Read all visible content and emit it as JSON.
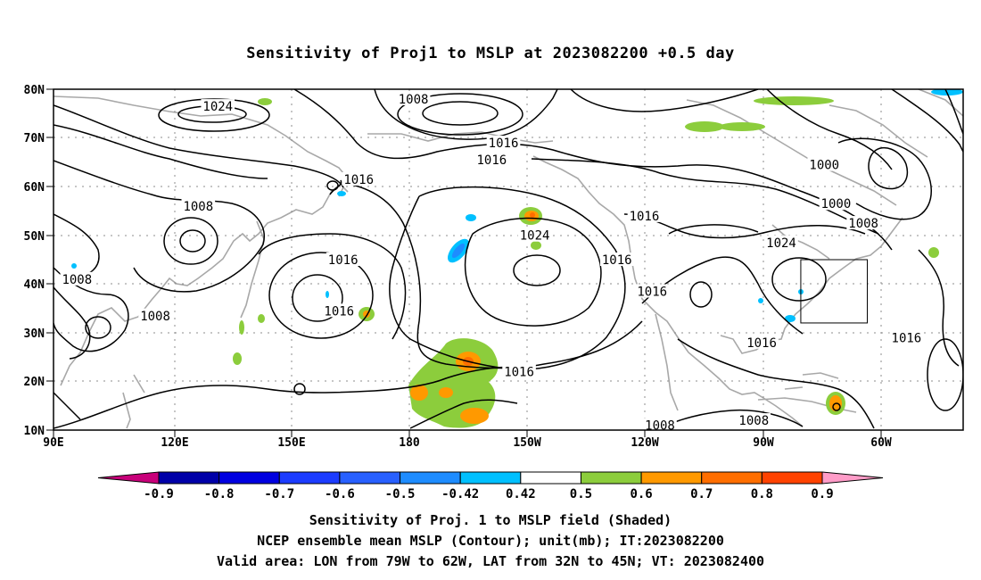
{
  "title": "Sensitivity of Proj1 to MSLP at 2023082200 +0.5 day",
  "lat_labels": [
    "80N",
    "70N",
    "60N",
    "50N",
    "40N",
    "30N",
    "20N",
    "10N"
  ],
  "lon_labels": [
    "90E",
    "120E",
    "150E",
    "180",
    "150W",
    "120W",
    "90W",
    "60W"
  ],
  "contour_labels": [
    {
      "text": "1024",
      "lon": 132,
      "lat": 76.5
    },
    {
      "text": "1008",
      "lon": 182,
      "lat": 78.0
    },
    {
      "text": "1016",
      "lon": 168,
      "lat": 61.5
    },
    {
      "text": "1008",
      "lon": 127,
      "lat": 56.0
    },
    {
      "text": "1016",
      "lon": 205,
      "lat": 69.0
    },
    {
      "text": "1016",
      "lon": 202,
      "lat": 65.5
    },
    {
      "text": "1024",
      "lon": 213,
      "lat": 50.0
    },
    {
      "text": "1016",
      "lon": 241,
      "lat": 54.0
    },
    {
      "text": "1016",
      "lon": 234,
      "lat": 45.0
    },
    {
      "text": "1016",
      "lon": 243,
      "lat": 38.5
    },
    {
      "text": "1024",
      "lon": 276,
      "lat": 48.5
    },
    {
      "text": "1000",
      "lon": 287,
      "lat": 64.5
    },
    {
      "text": "1000",
      "lon": 290,
      "lat": 56.5
    },
    {
      "text": "1008",
      "lon": 297,
      "lat": 52.5
    },
    {
      "text": "1016",
      "lon": 164,
      "lat": 45.0
    },
    {
      "text": "1016",
      "lon": 163,
      "lat": 34.5
    },
    {
      "text": "1008",
      "lon": 96,
      "lat": 41.0
    },
    {
      "text": "1008",
      "lon": 116,
      "lat": 33.5
    },
    {
      "text": "1016",
      "lon": 209,
      "lat": 22.0
    },
    {
      "text": "1016",
      "lon": 271,
      "lat": 28.0
    },
    {
      "text": "1016",
      "lon": 308,
      "lat": 29.0
    },
    {
      "text": "1008",
      "lon": 245,
      "lat": 11.0
    },
    {
      "text": "1008",
      "lon": 269,
      "lat": 12.0
    }
  ],
  "valid_area": {
    "lon_min": -79,
    "lon_max": -62,
    "lat_min": 32,
    "lat_max": 45
  },
  "colorbar": {
    "labels": [
      "-0.9",
      "-0.8",
      "-0.7",
      "-0.6",
      "-0.5",
      "-0.42",
      "0.42",
      "0.5",
      "0.6",
      "0.7",
      "0.8",
      "0.9"
    ],
    "colors": [
      "#c8007a",
      "#0000a8",
      "#0000e0",
      "#1c3cff",
      "#2860ff",
      "#1e8cff",
      "#00c0ff",
      "#ffffff",
      "#8ccd3c",
      "#ff9900",
      "#ff6e00",
      "#ff4200",
      "#ff1e00",
      "#ff0000",
      "#ff9cc8"
    ]
  },
  "captions": [
    "Sensitivity of Proj. 1 to MSLP field (Shaded)",
    "NCEP ensemble mean MSLP (Contour); unit(mb); IT:2023082200",
    "Valid area: LON from 79W to 62W, LAT from 32N to 45N; VT: 2023082400"
  ]
}
